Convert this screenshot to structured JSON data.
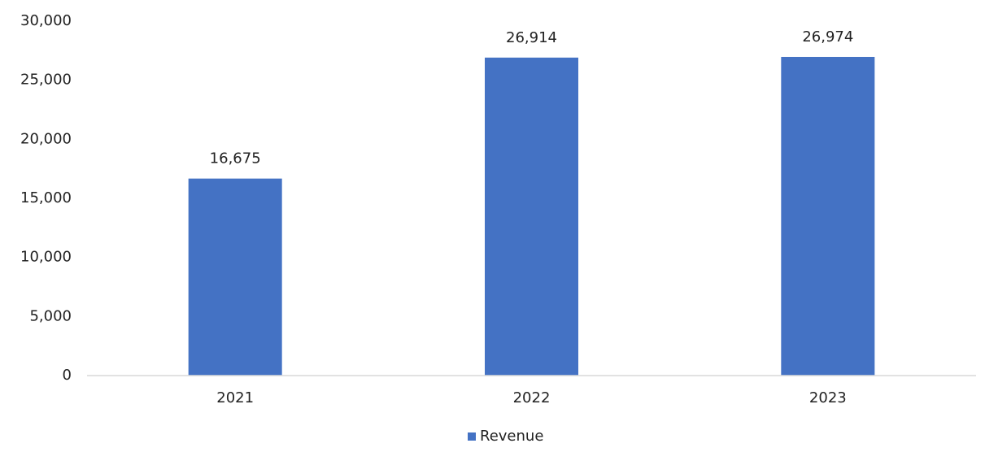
{
  "chart_data": {
    "type": "bar",
    "categories": [
      "2021",
      "2022",
      "2023"
    ],
    "series": [
      {
        "name": "Revenue",
        "color": "#4472c4",
        "values": [
          16675,
          26914,
          26974
        ],
        "value_labels": [
          "16,675",
          "26,914",
          "26,974"
        ]
      }
    ],
    "ylim": [
      0,
      30000
    ],
    "yticks": [
      0,
      {
        "value": 5000,
        "label": "5,000"
      },
      {
        "value": 10000,
        "label": "10,000"
      },
      {
        "value": 15000,
        "label": "15,000"
      },
      {
        "value": 20000,
        "label": "20,000"
      },
      {
        "value": 25000,
        "label": "25,000"
      },
      {
        "value": 30000,
        "label": "30,000"
      }
    ],
    "grid": false,
    "legend": "bottom"
  }
}
